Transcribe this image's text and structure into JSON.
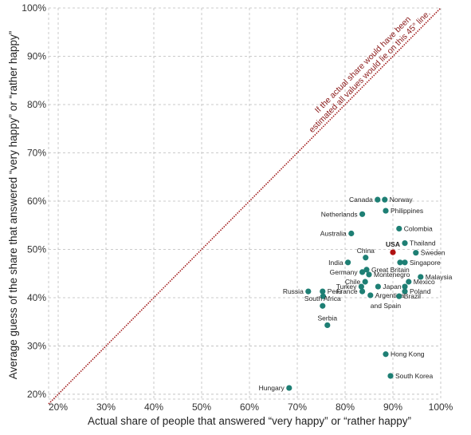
{
  "chart_data": {
    "type": "scatter",
    "xlabel": "Actual share of people that answered “very happy” or “rather happy”",
    "ylabel": "Average guess of the share that answered “very happy” or “rather happy”",
    "xlim": [
      18,
      100
    ],
    "ylim": [
      19,
      100
    ],
    "x_ticks": [
      20,
      30,
      40,
      50,
      60,
      70,
      80,
      90,
      100
    ],
    "y_ticks": [
      20,
      30,
      40,
      50,
      60,
      70,
      80,
      90,
      100
    ],
    "x_tick_labels": [
      "20%",
      "30%",
      "40%",
      "50%",
      "60%",
      "70%",
      "80%",
      "90%",
      "100%"
    ],
    "y_tick_labels": [
      "20%",
      "30%",
      "40%",
      "50%",
      "60%",
      "70%",
      "80%",
      "90%",
      "100%"
    ],
    "grid": true,
    "reference_line": {
      "from": [
        18,
        18
      ],
      "to": [
        100,
        100
      ],
      "note_line1": "If the actual share would have been",
      "note_line2": "estimated all values would lie on this 45° line.",
      "color": "#a01818"
    },
    "colors": {
      "points": "#1e7f74",
      "highlight": "#b01212",
      "grid": "#bbbbbb"
    },
    "points": [
      {
        "label": "Norway",
        "x": 88.3,
        "y": 60.3,
        "anchor": "start"
      },
      {
        "label": "Canada",
        "x": 86.8,
        "y": 60.3,
        "anchor": "end"
      },
      {
        "label": "Philippines",
        "x": 88.5,
        "y": 58.0,
        "anchor": "start"
      },
      {
        "label": "Netherlands",
        "x": 83.6,
        "y": 57.3,
        "anchor": "end"
      },
      {
        "label": "Colombia",
        "x": 91.3,
        "y": 54.3,
        "anchor": "start"
      },
      {
        "label": "Australia",
        "x": 81.3,
        "y": 53.3,
        "anchor": "end"
      },
      {
        "label": "Thailand",
        "x": 92.5,
        "y": 51.3,
        "anchor": "start"
      },
      {
        "label": "USA",
        "x": 90.0,
        "y": 49.4,
        "anchor": "middle",
        "highlight": true
      },
      {
        "label": "Sweden",
        "x": 94.8,
        "y": 49.3,
        "anchor": "start"
      },
      {
        "label": "China",
        "x": 84.3,
        "y": 48.3,
        "anchor": "middle"
      },
      {
        "label": "India",
        "x": 80.6,
        "y": 47.3,
        "anchor": "end"
      },
      {
        "label": "Singapore",
        "x": 92.5,
        "y": 47.3,
        "anchor": "start"
      },
      {
        "label": "",
        "x": 91.5,
        "y": 47.3,
        "anchor": "start"
      },
      {
        "label": "Great Britain",
        "x": 84.5,
        "y": 45.8,
        "anchor": "start"
      },
      {
        "label": "Germany",
        "x": 83.6,
        "y": 45.3,
        "anchor": "end"
      },
      {
        "label": "Montenegro",
        "x": 85.0,
        "y": 44.8,
        "anchor": "start"
      },
      {
        "label": "Malaysia",
        "x": 95.8,
        "y": 44.3,
        "anchor": "start"
      },
      {
        "label": "Chile",
        "x": 84.2,
        "y": 43.3,
        "anchor": "end"
      },
      {
        "label": "Mexico",
        "x": 93.3,
        "y": 43.3,
        "anchor": "start"
      },
      {
        "label": "Turkey",
        "x": 83.4,
        "y": 42.3,
        "anchor": "end"
      },
      {
        "label": "Japan",
        "x": 86.9,
        "y": 42.3,
        "anchor": "start"
      },
      {
        "label": "",
        "x": 92.5,
        "y": 42.3,
        "anchor": "start"
      },
      {
        "label": "Russia",
        "x": 72.3,
        "y": 41.3,
        "anchor": "end"
      },
      {
        "label": "Peru",
        "x": 75.3,
        "y": 41.3,
        "anchor": "start"
      },
      {
        "label": "France",
        "x": 83.6,
        "y": 41.3,
        "anchor": "end"
      },
      {
        "label": "Poland",
        "x": 92.5,
        "y": 41.3,
        "anchor": "start"
      },
      {
        "label": "Argentina",
        "x": 85.3,
        "y": 40.5,
        "anchor": "start"
      },
      {
        "label": "",
        "x": 75.4,
        "y": 40.3,
        "anchor": "start"
      },
      {
        "label": "Brazil",
        "x": 91.3,
        "y": 40.3,
        "anchor": "start"
      },
      {
        "label": "and Spain",
        "x": 85.3,
        "y": 38.3,
        "anchor": "start",
        "no_dot": true
      },
      {
        "label": "South Africa",
        "x": 75.3,
        "y": 38.3,
        "anchor": "middle"
      },
      {
        "label": "Serbia",
        "x": 76.3,
        "y": 34.3,
        "anchor": "middle"
      },
      {
        "label": "Hong Kong",
        "x": 88.5,
        "y": 28.3,
        "anchor": "start"
      },
      {
        "label": "South Korea",
        "x": 89.5,
        "y": 23.8,
        "anchor": "start"
      },
      {
        "label": "Hungary",
        "x": 68.3,
        "y": 21.3,
        "anchor": "end"
      }
    ]
  }
}
